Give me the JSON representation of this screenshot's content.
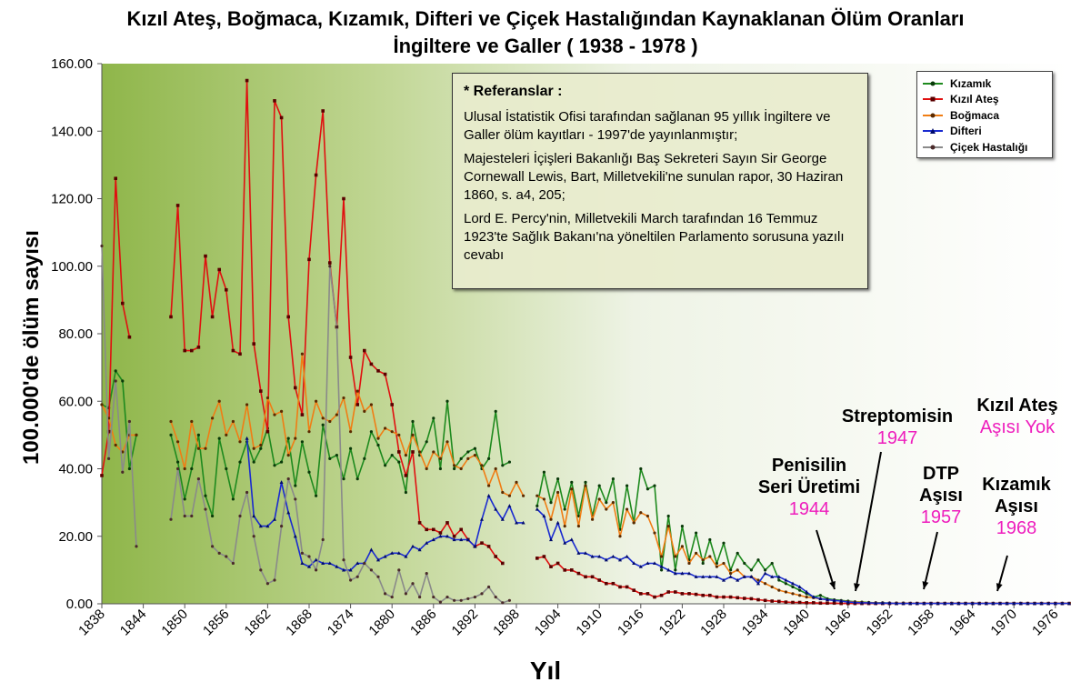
{
  "title": "Kızıl Ateş, Boğmaca, Kızamık, Difteri ve Çiçek Hastalığından Kaynaklanan Ölüm Oranları",
  "subtitle": "İngiltere ve Galler ( 1938 - 1978 )",
  "references": {
    "heading": "* Referanslar :",
    "items": [
      "Ulusal İstatistik Ofisi tarafından sağlanan 95 yıllık İngiltere ve Galler ölüm kayıtları - 1997'de yayınlanmıştır;",
      "Majesteleri İçişleri Bakanlığı Baş Sekreteri Sayın Sir George Cornewall Lewis, Bart, Milletvekili'ne sunulan rapor, 30 Haziran 1860, s. a4, 205;",
      "Lord E. Percy'nin, Milletvekili March tarafından 16 Temmuz 1923'te Sağlık Bakanı'na yöneltilen Parlamento sorusuna yazılı cevabı"
    ]
  },
  "annotations": [
    {
      "bold": "Penisilin",
      "bold2": "Seri Üretimi",
      "magenta": "1944"
    },
    {
      "bold": "Streptomisin",
      "bold2": "",
      "magenta": "1947"
    },
    {
      "bold": "DTP",
      "bold2": "Aşısı",
      "magenta": "1957"
    },
    {
      "bold": "Kızamık",
      "bold2": "Aşısı",
      "magenta": "1968"
    },
    {
      "bold": "Kızıl Ateş",
      "bold2": "",
      "magenta": "Aşısı Yok"
    }
  ],
  "chart_data": {
    "type": "line",
    "title": "Kızıl Ateş, Boğmaca, Kızamık, Difteri ve Çiçek Hastalığından Kaynaklanan Ölüm Oranları",
    "subtitle": "İngiltere ve Galler ( 1938 - 1978 )",
    "xlabel": "Yıl",
    "ylabel": "100.000'de ölüm sayısı",
    "xlim": [
      1838,
      1978
    ],
    "ylim": [
      0,
      160
    ],
    "yticks": [
      "0.00",
      "20.00",
      "40.00",
      "60.00",
      "80.00",
      "100.00",
      "120.00",
      "140.00",
      "160.00"
    ],
    "xticks": [
      "1838",
      "1844",
      "1850",
      "1856",
      "1862",
      "1868",
      "1874",
      "1880",
      "1886",
      "1892",
      "1898",
      "1904",
      "1910",
      "1916",
      "1922",
      "1928",
      "1934",
      "1940",
      "1946",
      "1952",
      "1958",
      "1964",
      "1970",
      "1976"
    ],
    "grid": false,
    "legend_position": "top-right",
    "series": [
      {
        "name": "Kızamık",
        "color": "#1e8a1e",
        "marker": "circle",
        "segments": [
          {
            "x0": 1838,
            "values": [
              59,
              58,
              69,
              66,
              40,
              50
            ]
          },
          {
            "x0": 1848,
            "values": [
              50,
              42,
              31,
              40,
              50,
              32,
              26,
              49,
              40,
              31,
              42,
              48,
              42,
              46,
              52,
              41,
              42,
              49,
              35,
              48,
              39,
              32,
              53,
              43,
              44,
              37,
              46,
              37,
              43,
              51,
              47,
              41,
              44,
              42,
              33,
              54,
              44,
              48,
              55,
              40,
              60,
              40,
              43,
              45,
              46,
              40,
              43,
              57,
              41,
              42
            ]
          },
          {
            "x0": 1901,
            "values": [
              29,
              39,
              30,
              37,
              28,
              36,
              26,
              36,
              26,
              35,
              30,
              37,
              22,
              35,
              24,
              40,
              34,
              35,
              10,
              26,
              10,
              23,
              13,
              21,
              12,
              19,
              12,
              18,
              10,
              15,
              12,
              10,
              13,
              10,
              12,
              7,
              6,
              5,
              4,
              3,
              2,
              2.5,
              1.5,
              1.2,
              1.0,
              0.8,
              0.6,
              0.5,
              0.4,
              0.3,
              0.3,
              0.2,
              0.2,
              0.2,
              0.1,
              0.1,
              0.1,
              0.1,
              0.1,
              0.1,
              0.1,
              0.1,
              0.1,
              0.1,
              0.1,
              0.1,
              0.1,
              0.1,
              0.1,
              0.1,
              0.1,
              0.1,
              0.1,
              0.1,
              0.1,
              0.1,
              0.1,
              0.1
            ]
          }
        ]
      },
      {
        "name": "Kızıl Ateş",
        "color": "#e01010",
        "marker": "square",
        "segments": [
          {
            "x0": 1838,
            "values": [
              38,
              51,
              126,
              89,
              79
            ]
          },
          {
            "x0": 1848,
            "values": [
              85,
              118,
              75,
              75,
              76,
              103,
              85,
              99,
              93,
              75,
              74,
              155,
              77,
              63,
              51,
              149,
              144,
              85,
              64,
              56,
              102,
              127,
              146,
              101,
              82,
              120,
              73,
              59,
              75,
              71,
              69,
              68,
              59,
              45,
              38,
              45,
              24,
              22,
              22,
              21,
              24,
              20,
              22,
              19,
              17,
              18,
              17,
              14,
              12
            ]
          },
          {
            "x0": 1901,
            "values": [
              13.5,
              14,
              11,
              12,
              10,
              10,
              9,
              8,
              8,
              7,
              6,
              6,
              5,
              5,
              4,
              3,
              3,
              2,
              2.5,
              3.5,
              3.5,
              3,
              3,
              2.8,
              2.5,
              2.5,
              2,
              2,
              2,
              1.8,
              1.6,
              1.5,
              1.2,
              1.0,
              0.8,
              0.7,
              0.5,
              0.4,
              0.4,
              0.3,
              0.3,
              0.2,
              0.2,
              0.2,
              0.1,
              0.1,
              0.1,
              0.1,
              0.1,
              0.1,
              0.1,
              0.1,
              0.1,
              0.1,
              0.1,
              0.1,
              0.1,
              0.1,
              0.1,
              0.1,
              0.1,
              0.1,
              0.1,
              0.1,
              0.1,
              0.1,
              0.1,
              0.1,
              0.1,
              0.1,
              0.1,
              0.1,
              0.1,
              0.1,
              0.1,
              0.1,
              0.1,
              0.1
            ]
          }
        ]
      },
      {
        "name": "Boğmaca",
        "color": "#f07d14",
        "marker": "circle",
        "segments": [
          {
            "x0": 1838,
            "values": [
              59,
              55,
              47,
              45,
              50,
              50
            ]
          },
          {
            "x0": 1848,
            "values": [
              54,
              48,
              40,
              54,
              46,
              46,
              55,
              60,
              50,
              54,
              48,
              59,
              46,
              47,
              61,
              56,
              57,
              44,
              49,
              74,
              51,
              60,
              55,
              54,
              56,
              61,
              51,
              63,
              57,
              59,
              49,
              52,
              51,
              50,
              44,
              50,
              45,
              40,
              45,
              43,
              48,
              41,
              40,
              43,
              44,
              41,
              35,
              40,
              33,
              32,
              36,
              32
            ]
          },
          {
            "x0": 1901,
            "values": [
              32,
              31,
              25,
              33,
              23,
              34,
              23,
              35,
              25,
              31,
              28,
              30,
              20,
              28,
              24,
              27,
              26,
              21,
              14,
              23,
              14,
              17,
              12,
              15,
              13,
              14,
              11,
              12,
              9,
              10,
              8,
              8,
              7,
              6,
              5,
              4,
              3.5,
              3,
              2.5,
              2,
              1.8,
              1.5,
              1.2,
              1.0,
              0.8,
              0.6,
              0.5,
              0.4,
              0.3,
              0.3,
              0.2,
              0.2,
              0.2,
              0.2,
              0.1,
              0.1,
              0.1,
              0.1,
              0.1,
              0.1,
              0.1,
              0.1,
              0.1,
              0.1,
              0.1,
              0.1,
              0.1,
              0.1,
              0.1,
              0.1,
              0.1,
              0.1,
              0.1,
              0.1,
              0.1,
              0.1,
              0.1,
              0.1
            ]
          }
        ]
      },
      {
        "name": "Difteri",
        "color": "#1a2bd0",
        "marker": "triangle",
        "segments": [
          {
            "x0": 1859,
            "values": [
              49,
              26,
              23,
              23,
              25,
              36,
              27,
              20,
              12,
              11,
              13,
              12,
              12,
              11,
              10,
              10,
              12,
              12,
              16,
              13,
              14,
              15,
              15,
              14,
              17,
              16,
              18,
              19,
              20,
              20,
              19,
              19,
              19,
              17,
              25,
              32,
              28,
              25,
              29,
              24,
              24
            ]
          },
          {
            "x0": 1901,
            "values": [
              28,
              26,
              19,
              24,
              18,
              19,
              15,
              15,
              14,
              14,
              13,
              14,
              13,
              14,
              12,
              11,
              12,
              12,
              11,
              10,
              9,
              9,
              9,
              8,
              8,
              8,
              8,
              7,
              8,
              7,
              8,
              8,
              6,
              9,
              8,
              8,
              7,
              6,
              5,
              3.5,
              2,
              1.5,
              1.2,
              1.0,
              0.8,
              0.5,
              0.4,
              0.3,
              0.3,
              0.2,
              0.2,
              0.2,
              0.1,
              0.1,
              0.1,
              0.1,
              0.1,
              0.1,
              0.1,
              0.1,
              0.1,
              0.1,
              0.1,
              0.1,
              0.1,
              0.1,
              0.1,
              0.1,
              0.1,
              0.1,
              0.1,
              0.1,
              0.1,
              0.1,
              0.1,
              0.1,
              0.1,
              0.1
            ]
          }
        ]
      },
      {
        "name": "Çiçek Hastalığı",
        "color": "#8a8a8a",
        "marker": "circle",
        "segments": [
          {
            "x0": 1838,
            "values": [
              106,
              43,
              66,
              39,
              54,
              17
            ]
          },
          {
            "x0": 1848,
            "values": [
              25,
              40,
              26,
              26,
              37,
              28,
              17,
              15,
              14,
              12,
              26,
              33,
              20,
              10,
              6,
              7,
              23,
              37,
              31,
              15,
              14,
              10,
              19,
              100,
              82,
              13,
              7,
              8,
              12,
              10,
              8,
              3,
              2,
              10,
              3,
              6,
              2,
              9,
              2,
              0.5,
              2,
              1,
              1,
              1.5,
              2,
              3,
              5,
              2,
              0.3,
              1
            ]
          }
        ]
      }
    ]
  }
}
